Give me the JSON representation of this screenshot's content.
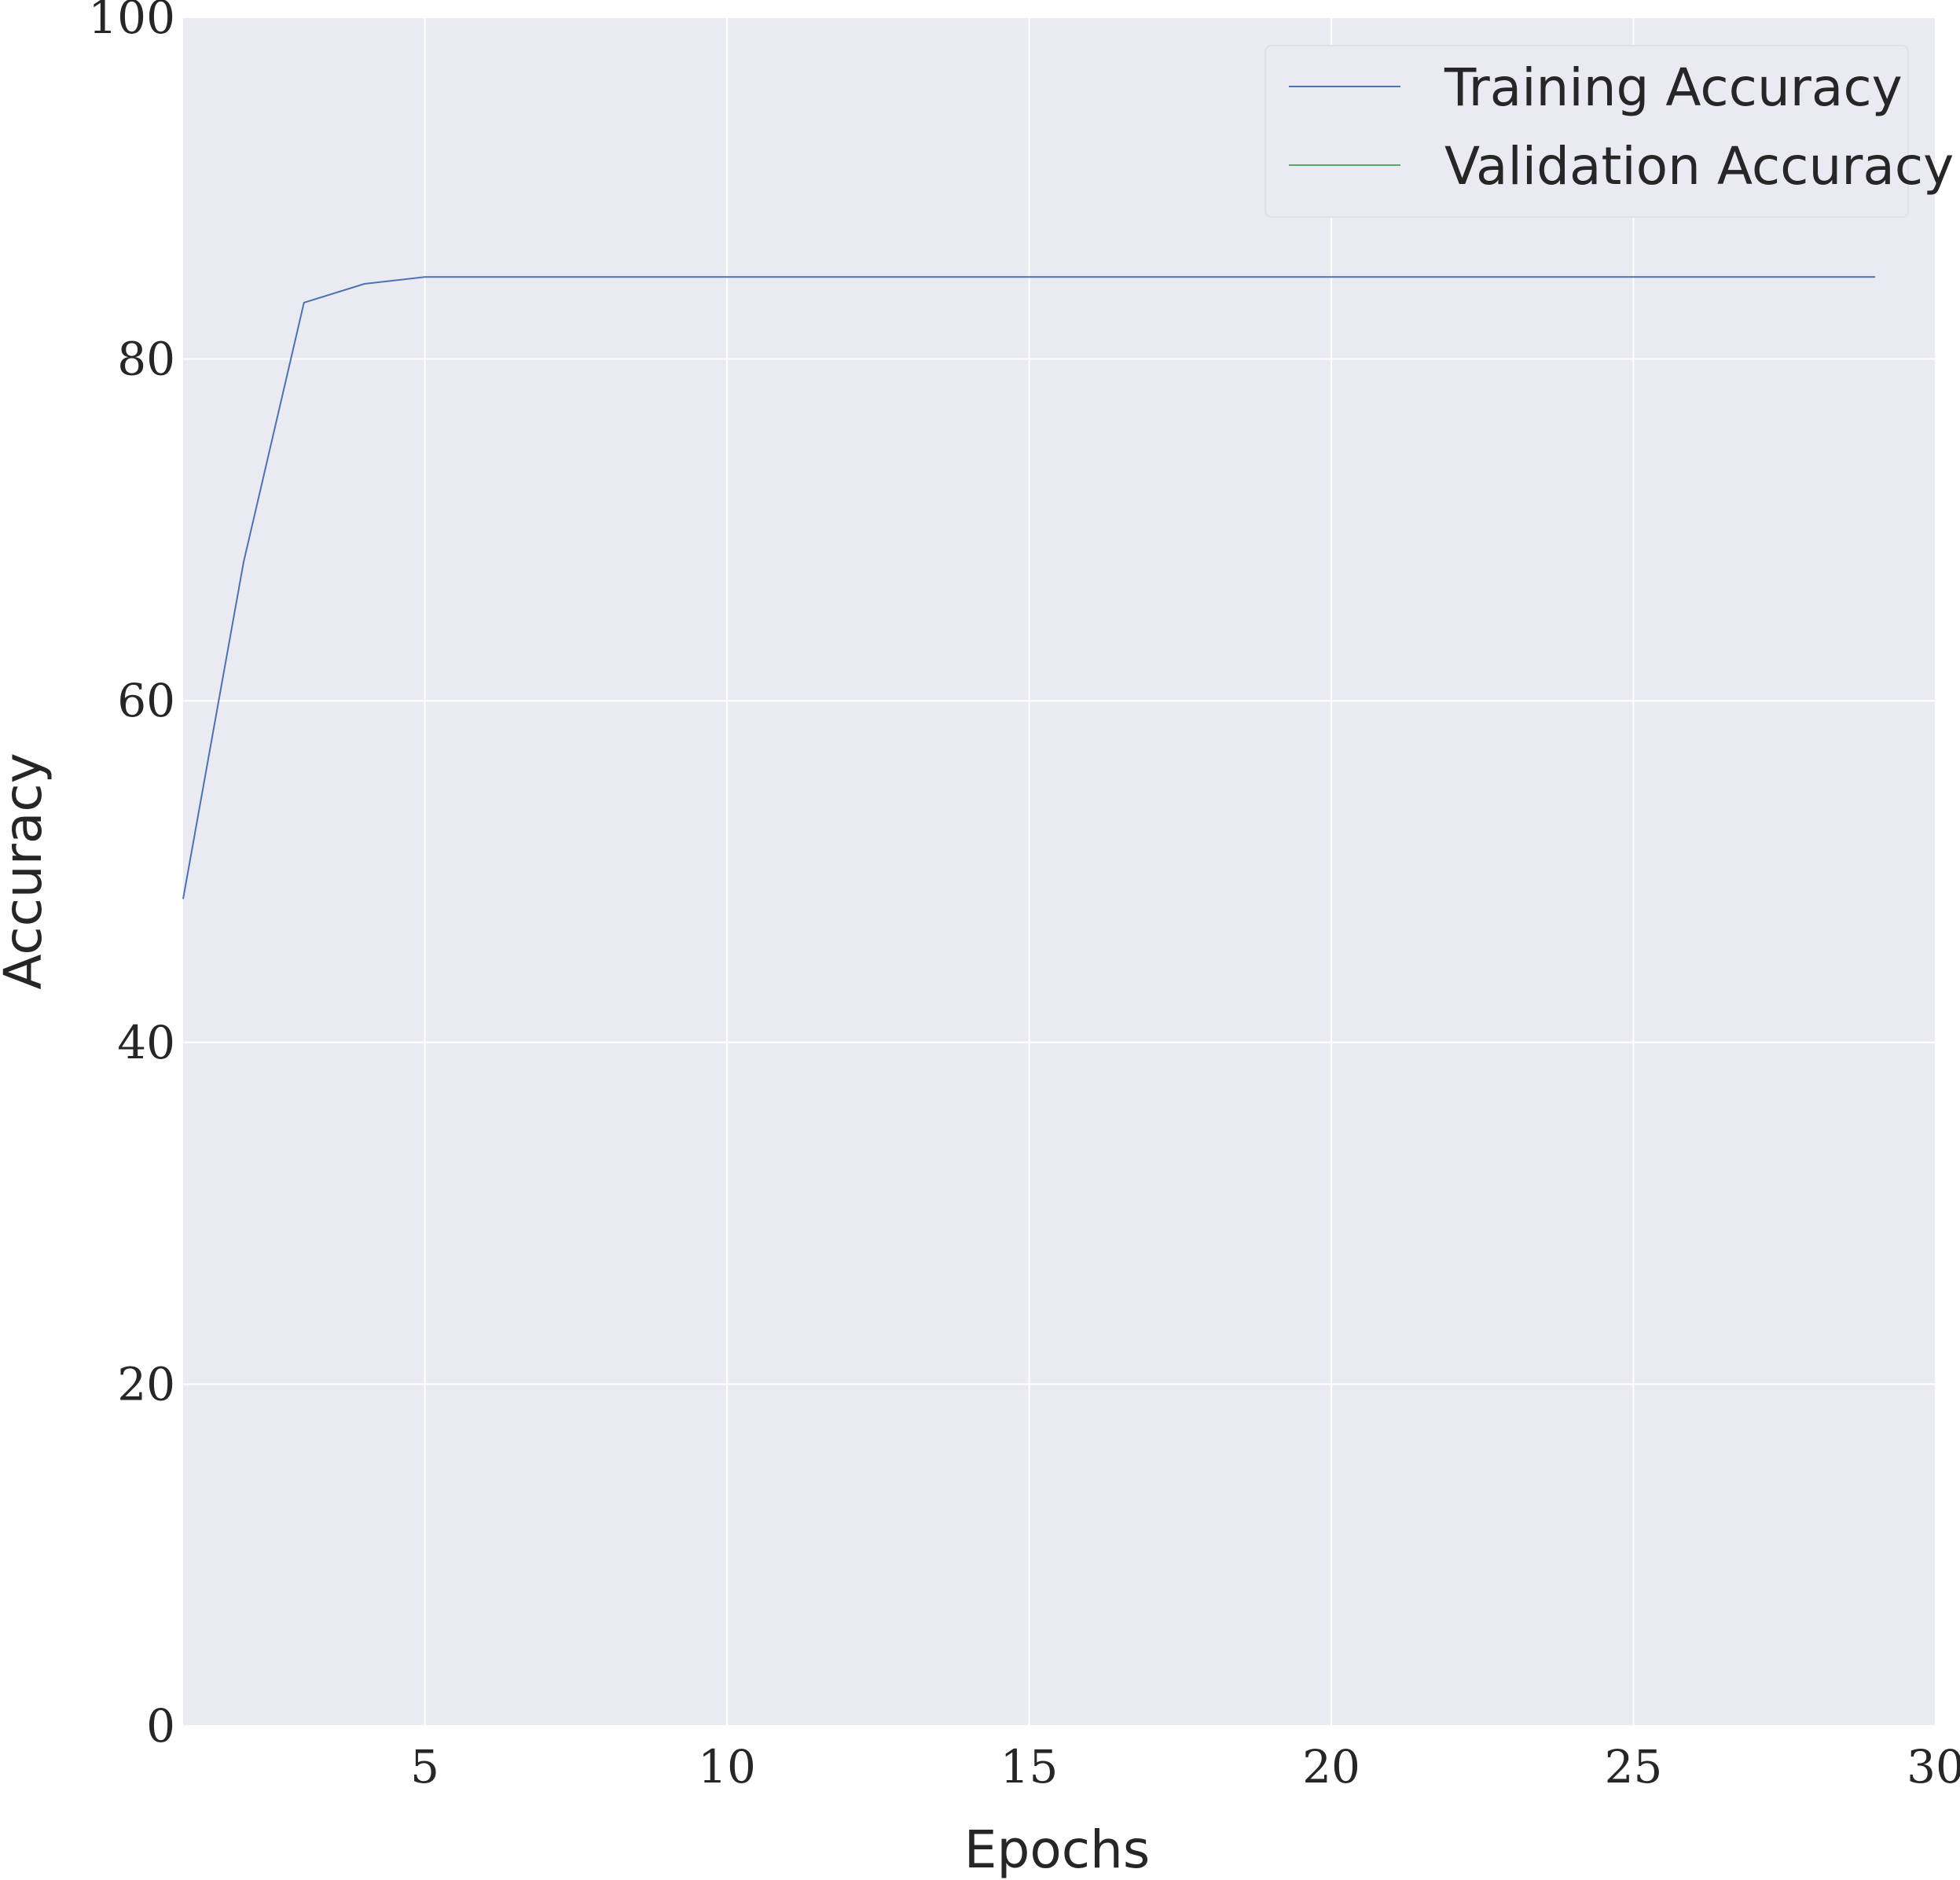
{
  "chart_data": {
    "type": "line",
    "xlabel": "Epochs",
    "ylabel": "Accuracy",
    "xlim": [
      1,
      30
    ],
    "ylim": [
      0,
      100
    ],
    "xticks": [
      5,
      10,
      15,
      20,
      25,
      30
    ],
    "yticks": [
      0,
      20,
      40,
      60,
      80,
      100
    ],
    "grid": true,
    "legend_position": "top-right",
    "background": "#eaeaf2",
    "grid_color": "#ffffff",
    "series": [
      {
        "name": "Training Accuracy",
        "color": "#4c72b0",
        "x": [
          1,
          2,
          3,
          4,
          5,
          6,
          7,
          8,
          9,
          10,
          11,
          12,
          13,
          14,
          15,
          16,
          17,
          18,
          19,
          20,
          21,
          22,
          23,
          24,
          25,
          26,
          27,
          28,
          29
        ],
        "y": [
          48.4,
          68.1,
          83.3,
          84.4,
          84.8,
          84.8,
          84.8,
          84.8,
          84.8,
          84.8,
          84.8,
          84.8,
          84.8,
          84.8,
          84.8,
          84.8,
          84.8,
          84.8,
          84.8,
          84.8,
          84.8,
          84.8,
          84.8,
          84.8,
          84.8,
          84.8,
          84.8,
          84.8,
          84.8
        ]
      },
      {
        "name": "Validation Accuracy",
        "color": "#55a868",
        "x": [],
        "y": []
      }
    ]
  }
}
